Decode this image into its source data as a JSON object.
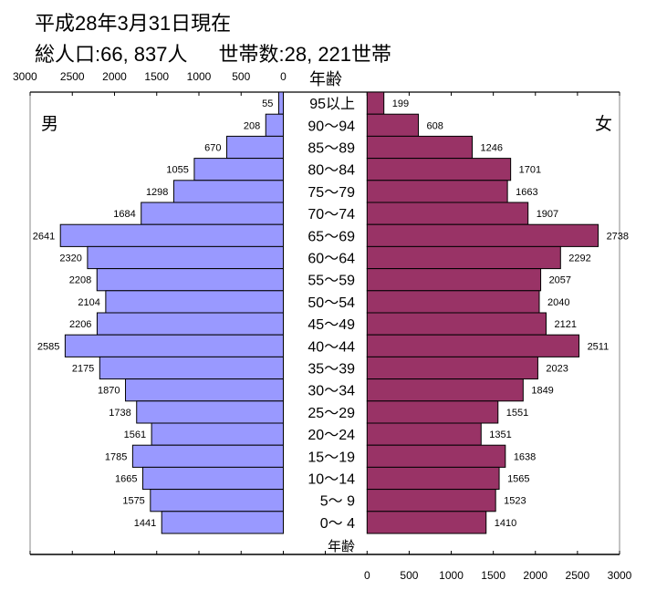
{
  "header": {
    "title": "平成28年3月31日現在",
    "summary_population": "総人口:66, 837人",
    "summary_households": "世帯数:28, 221世帯"
  },
  "chart_data": {
    "type": "bar",
    "orientation": "horizontal",
    "layout": "population-pyramid",
    "category_axis_label": "年齢",
    "categories": [
      "95以上",
      "90～94",
      "85～89",
      "80～84",
      "75～79",
      "70～74",
      "65～69",
      "60～64",
      "55～59",
      "50～54",
      "45～49",
      "40～44",
      "35～39",
      "30～34",
      "25～29",
      "20～24",
      "15～19",
      "10～14",
      "5～ 9",
      "0～ 4"
    ],
    "series": [
      {
        "name": "男",
        "color": "#9999ff",
        "side": "left",
        "values": [
          55,
          208,
          670,
          1055,
          1298,
          1684,
          2641,
          2320,
          2208,
          2104,
          2206,
          2585,
          2175,
          1870,
          1738,
          1561,
          1785,
          1665,
          1575,
          1441
        ]
      },
      {
        "name": "女",
        "color": "#993366",
        "side": "right",
        "values": [
          199,
          608,
          1246,
          1701,
          1663,
          1907,
          2738,
          2292,
          2057,
          2040,
          2121,
          2511,
          2023,
          1849,
          1551,
          1351,
          1638,
          1565,
          1523,
          1410
        ]
      }
    ],
    "xlim": [
      0,
      3000
    ],
    "left_axis_ticks": [
      "3000",
      "2500",
      "2000",
      "1500",
      "1000",
      "500",
      "0"
    ],
    "left_axis_position": "top",
    "right_axis_ticks": [
      "0",
      "500",
      "1000",
      "1500",
      "2000",
      "2500",
      "3000"
    ],
    "right_axis_position": "bottom",
    "data_labels": true,
    "grid": false
  }
}
